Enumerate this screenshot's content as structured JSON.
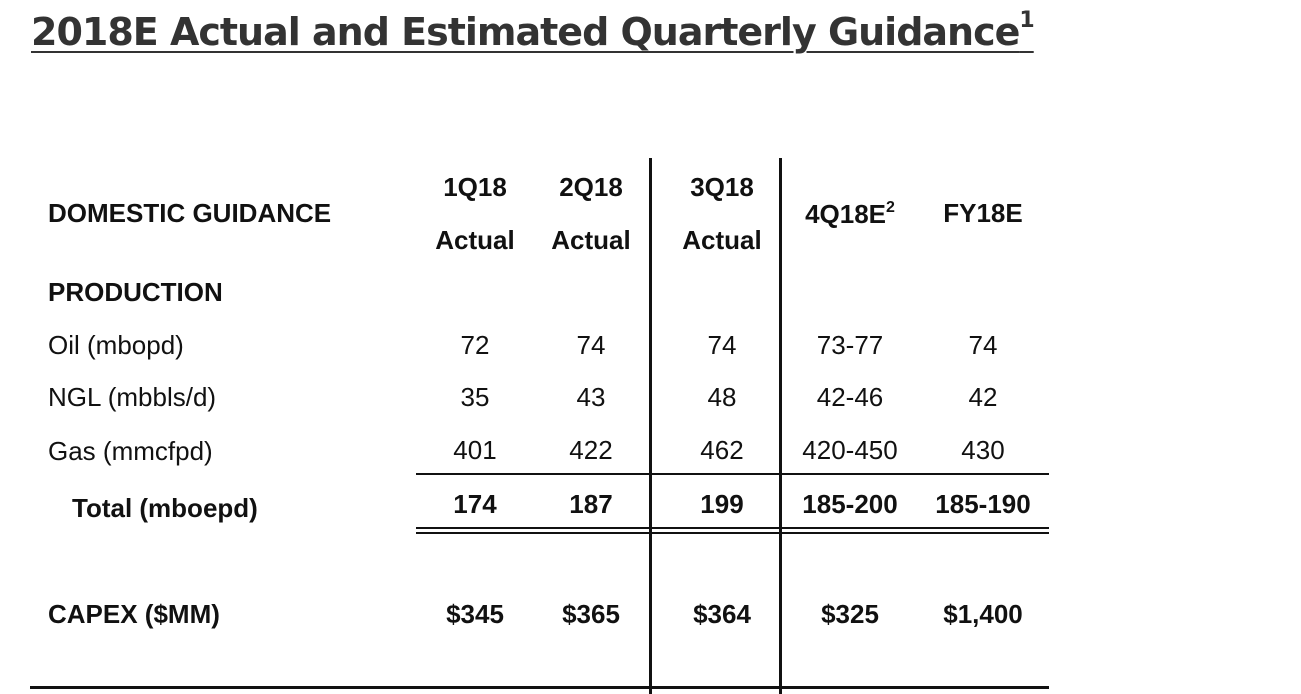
{
  "title": {
    "text": "2018E Actual and Estimated Quarterly Guidance",
    "footnote": "1"
  },
  "table": {
    "section_label": "DOMESTIC GUIDANCE",
    "columns": [
      {
        "top": "1Q18",
        "bottom": "Actual"
      },
      {
        "top": "2Q18",
        "bottom": "Actual"
      },
      {
        "top": "3Q18",
        "bottom": "Actual"
      },
      {
        "label": "4Q18E",
        "footnote": "2"
      },
      {
        "label": "FY18E"
      }
    ],
    "production_label": "PRODUCTION",
    "rows": [
      {
        "label": "Oil (mbopd)",
        "values": [
          "72",
          "74",
          "74",
          "73-77",
          "74"
        ]
      },
      {
        "label": "NGL (mbbls/d)",
        "values": [
          "35",
          "43",
          "48",
          "42-46",
          "42"
        ]
      },
      {
        "label": "Gas (mmcfpd)",
        "values": [
          "401",
          "422",
          "462",
          "420-450",
          "430"
        ]
      }
    ],
    "total": {
      "label": "Total (mboepd)",
      "values": [
        "174",
        "187",
        "199",
        "185-200",
        "185-190"
      ]
    },
    "capex": {
      "label": "CAPEX ($MM)",
      "values": [
        "$345",
        "$365",
        "$364",
        "$325",
        "$1,400"
      ]
    }
  }
}
